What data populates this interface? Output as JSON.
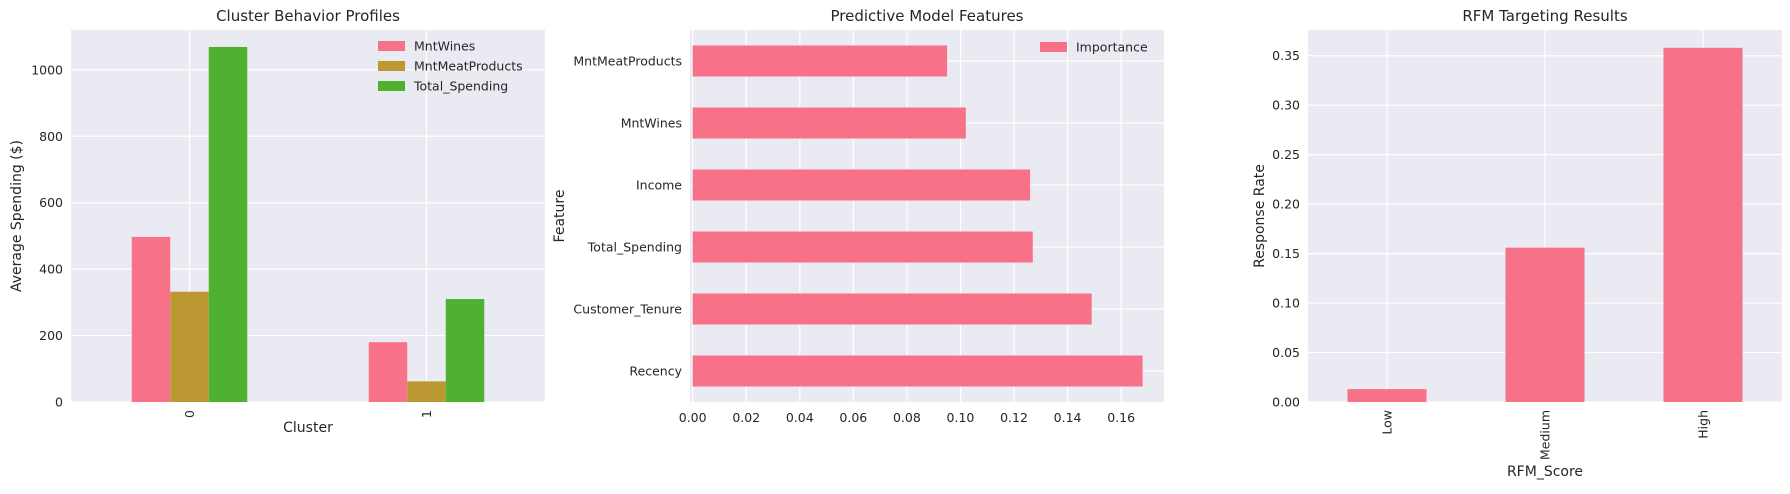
{
  "colors": {
    "background": "#eaeaf2",
    "grid": "#ffffff",
    "pink": "#f77189",
    "olive": "#bb9832",
    "green": "#50b131"
  },
  "chart_data": [
    {
      "type": "bar",
      "title": "Cluster Behavior Profiles",
      "xlabel": "Cluster",
      "ylabel": "Average Spending ($)",
      "categories": [
        "0",
        "1"
      ],
      "series": [
        {
          "name": "MntWines",
          "values": [
            497,
            180
          ],
          "color": "#f77189"
        },
        {
          "name": "MntMeatProducts",
          "values": [
            332,
            62
          ],
          "color": "#bb9832"
        },
        {
          "name": "Total_Spending",
          "values": [
            1069,
            310
          ],
          "color": "#50b131"
        }
      ],
      "ylim": [
        0,
        1120
      ],
      "yticks": [
        0,
        200,
        400,
        600,
        800,
        1000
      ],
      "grid": true,
      "legend": "top-right",
      "x_tick_rotation": 90
    },
    {
      "type": "bar",
      "orientation": "horizontal",
      "title": "Predictive Model Features",
      "xlabel": "",
      "ylabel": "Feature",
      "categories": [
        "Recency",
        "Customer_Tenure",
        "Total_Spending",
        "Income",
        "MntWines",
        "MntMeatProducts"
      ],
      "series": [
        {
          "name": "Importance",
          "values": [
            0.168,
            0.149,
            0.127,
            0.126,
            0.102,
            0.095
          ],
          "color": "#f77189"
        }
      ],
      "xlim": [
        -0.001,
        0.176
      ],
      "xticks": [
        0.0,
        0.02,
        0.04,
        0.06,
        0.08,
        0.1,
        0.12,
        0.14,
        0.16
      ],
      "xtick_labels": [
        "0.00",
        "0.02",
        "0.04",
        "0.06",
        "0.08",
        "0.10",
        "0.12",
        "0.14",
        "0.16"
      ],
      "grid": true,
      "legend": "top-right"
    },
    {
      "type": "bar",
      "title": "RFM Targeting Results",
      "xlabel": "RFM_Score",
      "ylabel": "Response Rate",
      "categories": [
        "Low",
        "Medium",
        "High"
      ],
      "series": [
        {
          "values": [
            0.013,
            0.156,
            0.358
          ],
          "color": "#f77189"
        }
      ],
      "ylim": [
        0,
        0.376
      ],
      "yticks": [
        0.0,
        0.05,
        0.1,
        0.15,
        0.2,
        0.25,
        0.3,
        0.35
      ],
      "ytick_labels": [
        "0.00",
        "0.05",
        "0.10",
        "0.15",
        "0.20",
        "0.25",
        "0.30",
        "0.35"
      ],
      "grid": true,
      "x_tick_rotation": 90
    }
  ]
}
